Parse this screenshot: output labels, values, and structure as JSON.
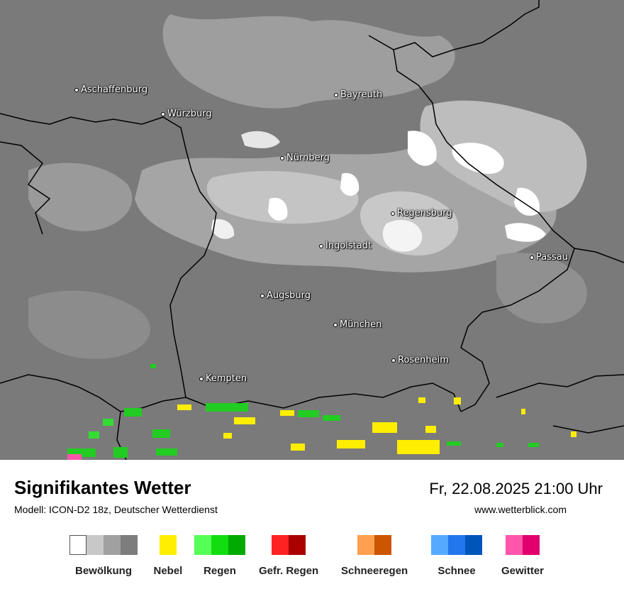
{
  "map": {
    "cities": [
      {
        "name": "Aschaffenburg"
      },
      {
        "name": "Würzburg"
      },
      {
        "name": "Bayreuth"
      },
      {
        "name": "Nürnberg"
      },
      {
        "name": "Regensburg"
      },
      {
        "name": "Ingolstadt"
      },
      {
        "name": "Passau"
      },
      {
        "name": "Augsburg"
      },
      {
        "name": "München"
      },
      {
        "name": "Rosenheim"
      },
      {
        "name": "Kempten"
      }
    ]
  },
  "header": {
    "title": "Signifikantes Wetter",
    "model_info": "Modell: ICON-D2 18z, Deutscher Wetterdienst",
    "datetime": "Fr, 22.08.2025 21:00 Uhr",
    "website": "www.wetterblick.com"
  },
  "legend": [
    {
      "label": "Bewölkung",
      "colors": [
        "#ffffff",
        "#c8c8c8",
        "#a0a0a0",
        "#7d7d7d"
      ]
    },
    {
      "label": "Nebel",
      "colors": [
        "#ffee00"
      ]
    },
    {
      "label": "Regen",
      "colors": [
        "#55ff55",
        "#11dd11",
        "#00aa00"
      ]
    },
    {
      "label": "Gefr. Regen",
      "colors": [
        "#ff2222",
        "#aa0000"
      ]
    },
    {
      "label": "Schneeregen",
      "colors": [
        "#ffa050",
        "#cc5500"
      ]
    },
    {
      "label": "Schnee",
      "colors": [
        "#55aaff",
        "#2277ee",
        "#0055bb"
      ]
    },
    {
      "label": "Gewitter",
      "colors": [
        "#ff55aa",
        "#e0006e"
      ]
    }
  ]
}
